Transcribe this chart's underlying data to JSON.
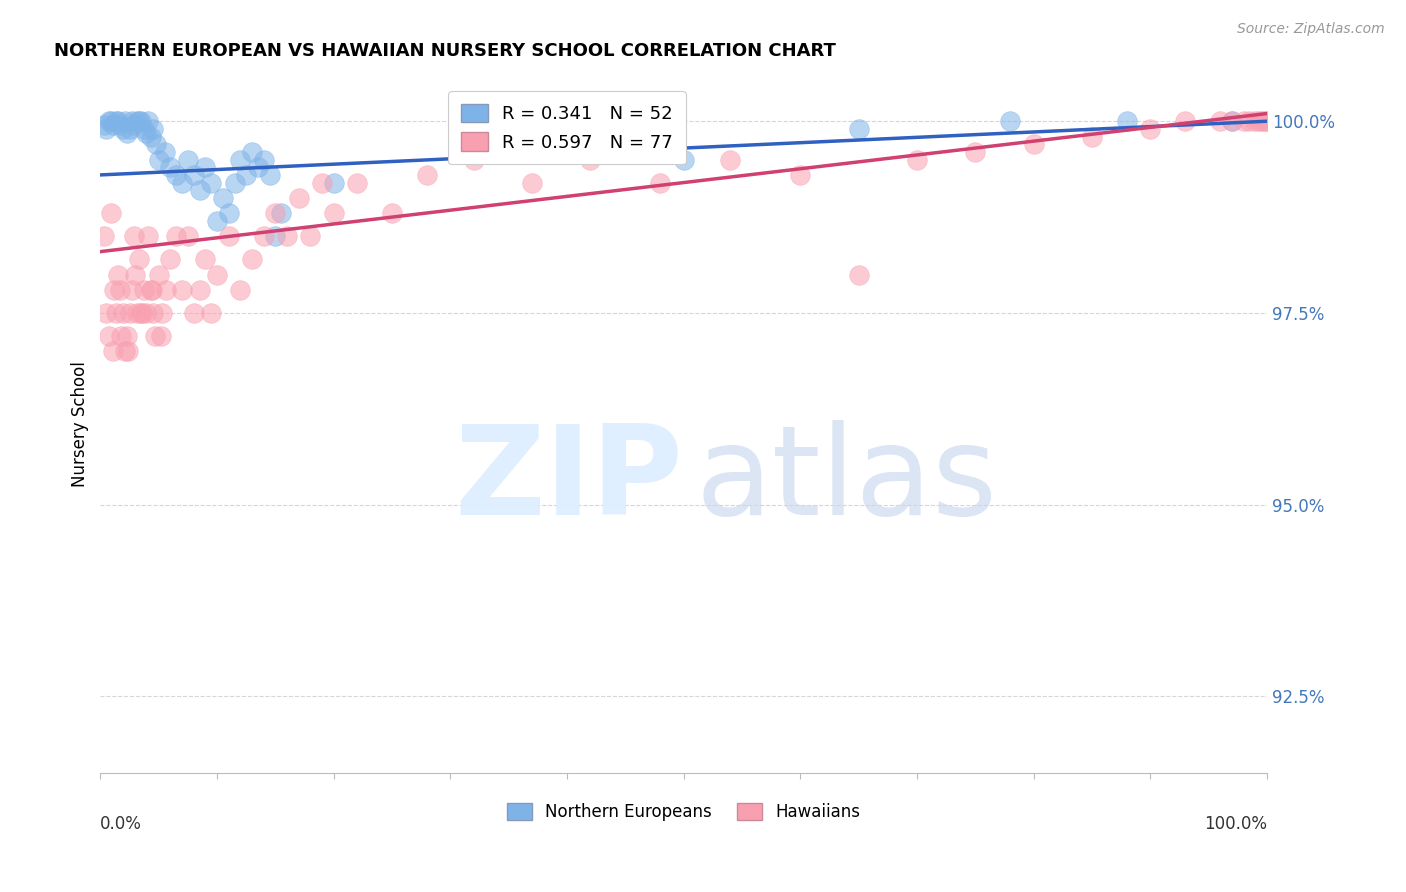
{
  "title": "NORTHERN EUROPEAN VS HAWAIIAN NURSERY SCHOOL CORRELATION CHART",
  "source": "Source: ZipAtlas.com",
  "ylabel": "Nursery School",
  "legend_blue_label": "Northern Europeans",
  "legend_pink_label": "Hawaiians",
  "r_blue": 0.341,
  "n_blue": 52,
  "r_pink": 0.597,
  "n_pink": 77,
  "blue_color": "#7EB3E8",
  "pink_color": "#F9A0B0",
  "blue_line_color": "#3060C0",
  "pink_line_color": "#D04070",
  "blue_scatter_color": "#88BBEE",
  "pink_scatter_color": "#FFAACC",
  "y_ticks": [
    92.5,
    95.0,
    97.5,
    100.0
  ],
  "ylim_min": 91.5,
  "ylim_max": 100.6,
  "xlim_min": 0.0,
  "xlim_max": 1.0,
  "blue_line_y0": 99.3,
  "blue_line_y1": 100.0,
  "pink_line_y0": 98.3,
  "pink_line_y1": 100.1,
  "blue_points": [
    [
      0.003,
      99.95
    ],
    [
      0.005,
      99.9
    ],
    [
      0.007,
      100.0
    ],
    [
      0.009,
      100.0
    ],
    [
      0.011,
      99.95
    ],
    [
      0.013,
      100.0
    ],
    [
      0.015,
      100.0
    ],
    [
      0.017,
      99.95
    ],
    [
      0.019,
      99.9
    ],
    [
      0.021,
      100.0
    ],
    [
      0.023,
      99.85
    ],
    [
      0.025,
      99.9
    ],
    [
      0.027,
      100.0
    ],
    [
      0.029,
      99.95
    ],
    [
      0.031,
      100.0
    ],
    [
      0.033,
      100.0
    ],
    [
      0.035,
      100.0
    ],
    [
      0.037,
      99.9
    ],
    [
      0.039,
      99.85
    ],
    [
      0.041,
      100.0
    ],
    [
      0.043,
      99.8
    ],
    [
      0.045,
      99.9
    ],
    [
      0.048,
      99.7
    ],
    [
      0.05,
      99.5
    ],
    [
      0.055,
      99.6
    ],
    [
      0.06,
      99.4
    ],
    [
      0.065,
      99.3
    ],
    [
      0.07,
      99.2
    ],
    [
      0.075,
      99.5
    ],
    [
      0.08,
      99.3
    ],
    [
      0.085,
      99.1
    ],
    [
      0.09,
      99.4
    ],
    [
      0.095,
      99.2
    ],
    [
      0.1,
      98.7
    ],
    [
      0.105,
      99.0
    ],
    [
      0.11,
      98.8
    ],
    [
      0.115,
      99.2
    ],
    [
      0.12,
      99.5
    ],
    [
      0.125,
      99.3
    ],
    [
      0.13,
      99.6
    ],
    [
      0.135,
      99.4
    ],
    [
      0.14,
      99.5
    ],
    [
      0.145,
      99.3
    ],
    [
      0.15,
      98.5
    ],
    [
      0.155,
      98.8
    ],
    [
      0.2,
      99.2
    ],
    [
      0.33,
      99.6
    ],
    [
      0.5,
      99.5
    ],
    [
      0.65,
      99.9
    ],
    [
      0.78,
      100.0
    ],
    [
      0.88,
      100.0
    ],
    [
      0.97,
      100.0
    ]
  ],
  "pink_points": [
    [
      0.003,
      98.5
    ],
    [
      0.005,
      97.5
    ],
    [
      0.007,
      97.2
    ],
    [
      0.009,
      98.8
    ],
    [
      0.011,
      97.0
    ],
    [
      0.013,
      97.5
    ],
    [
      0.015,
      98.0
    ],
    [
      0.017,
      97.8
    ],
    [
      0.019,
      97.5
    ],
    [
      0.021,
      97.0
    ],
    [
      0.023,
      97.2
    ],
    [
      0.025,
      97.5
    ],
    [
      0.027,
      97.8
    ],
    [
      0.029,
      98.5
    ],
    [
      0.031,
      97.5
    ],
    [
      0.033,
      98.2
    ],
    [
      0.035,
      97.5
    ],
    [
      0.037,
      97.8
    ],
    [
      0.039,
      97.5
    ],
    [
      0.041,
      98.5
    ],
    [
      0.043,
      97.8
    ],
    [
      0.045,
      97.5
    ],
    [
      0.047,
      97.2
    ],
    [
      0.05,
      98.0
    ],
    [
      0.053,
      97.5
    ],
    [
      0.056,
      97.8
    ],
    [
      0.06,
      98.2
    ],
    [
      0.065,
      98.5
    ],
    [
      0.07,
      97.8
    ],
    [
      0.075,
      98.5
    ],
    [
      0.08,
      97.5
    ],
    [
      0.085,
      97.8
    ],
    [
      0.09,
      98.2
    ],
    [
      0.095,
      97.5
    ],
    [
      0.1,
      98.0
    ],
    [
      0.11,
      98.5
    ],
    [
      0.12,
      97.8
    ],
    [
      0.13,
      98.2
    ],
    [
      0.14,
      98.5
    ],
    [
      0.15,
      98.8
    ],
    [
      0.16,
      98.5
    ],
    [
      0.17,
      99.0
    ],
    [
      0.18,
      98.5
    ],
    [
      0.19,
      99.2
    ],
    [
      0.2,
      98.8
    ],
    [
      0.22,
      99.2
    ],
    [
      0.25,
      98.8
    ],
    [
      0.28,
      99.3
    ],
    [
      0.32,
      99.5
    ],
    [
      0.37,
      99.2
    ],
    [
      0.42,
      99.5
    ],
    [
      0.48,
      99.2
    ],
    [
      0.54,
      99.5
    ],
    [
      0.6,
      99.3
    ],
    [
      0.65,
      98.0
    ],
    [
      0.7,
      99.5
    ],
    [
      0.75,
      99.6
    ],
    [
      0.8,
      99.7
    ],
    [
      0.85,
      99.8
    ],
    [
      0.9,
      99.9
    ],
    [
      0.93,
      100.0
    ],
    [
      0.96,
      100.0
    ],
    [
      0.97,
      100.0
    ],
    [
      0.98,
      100.0
    ],
    [
      0.985,
      100.0
    ],
    [
      0.99,
      100.0
    ],
    [
      0.993,
      100.0
    ],
    [
      0.996,
      100.0
    ],
    [
      0.998,
      100.0
    ],
    [
      1.0,
      100.0
    ],
    [
      0.012,
      97.8
    ],
    [
      0.018,
      97.2
    ],
    [
      0.024,
      97.0
    ],
    [
      0.03,
      98.0
    ],
    [
      0.036,
      97.5
    ],
    [
      0.044,
      97.8
    ],
    [
      0.052,
      97.2
    ]
  ]
}
